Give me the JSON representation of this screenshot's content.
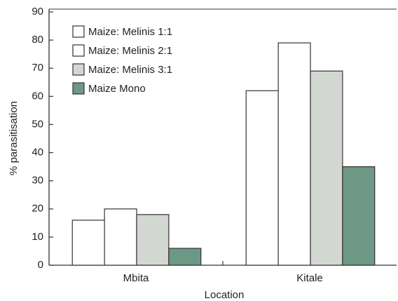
{
  "chart_data": {
    "type": "bar",
    "y_label": "% parasitisation",
    "x_label": "Location",
    "categories": [
      "Mbita",
      "Kitale"
    ],
    "series": [
      {
        "name": "Maize: Melinis 1:1",
        "color": "#ffffff",
        "values": [
          16,
          62
        ]
      },
      {
        "name": "Maize: Melinis 2:1",
        "color": "#ffffff",
        "values": [
          20,
          79
        ]
      },
      {
        "name": "Maize: Melinis 3:1",
        "color": "#d3d7d2",
        "values": [
          18,
          69
        ]
      },
      {
        "name": "Maize Mono",
        "color": "#6e9886",
        "values": [
          6,
          35
        ]
      }
    ],
    "ylim": [
      0,
      90
    ],
    "yticks": [
      0,
      10,
      20,
      30,
      40,
      50,
      60,
      70,
      80,
      90
    ],
    "legend": "upper left",
    "grid": false
  }
}
